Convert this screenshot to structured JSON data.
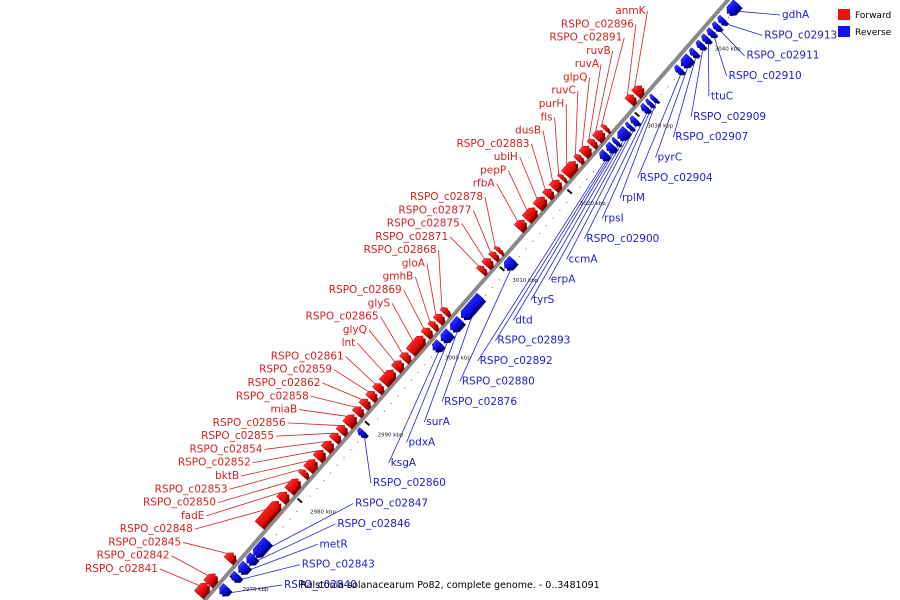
{
  "caption": "Ralstonia solanacearum Po82, complete genome. - 0..3481091",
  "legend": {
    "forward": {
      "label": "Forward",
      "color": "#ee1111"
    },
    "reverse": {
      "label": "Reverse",
      "color": "#1111ee"
    }
  },
  "colors": {
    "forward_label": "#d42020",
    "reverse_label": "#2020d0",
    "backbone": "#8a8a8a"
  },
  "ticks": [
    {
      "kbp": 2970,
      "label": "2970 kbp"
    },
    {
      "kbp": 2980,
      "label": "2980 kbp"
    },
    {
      "kbp": 2990,
      "label": "2990 kbp"
    },
    {
      "kbp": 3000,
      "label": "3000 kbp"
    },
    {
      "kbp": 3010,
      "label": "3010 kbp"
    },
    {
      "kbp": 3020,
      "label": "3020 kbp"
    },
    {
      "kbp": 3030,
      "label": "3030 kbp"
    },
    {
      "kbp": 3040,
      "label": "3040 kbp"
    }
  ],
  "genes": [
    {
      "name": "RSPO_c02840",
      "strand": "reverse",
      "start": 2968.0,
      "end": 2969.0
    },
    {
      "name": "RSPO_c02841",
      "strand": "forward",
      "start": 2966.6,
      "end": 2968.0
    },
    {
      "name": "RSPO_c02842",
      "strand": "forward",
      "start": 2968.0,
      "end": 2969.2
    },
    {
      "name": "RSPO_c02843",
      "strand": "reverse",
      "start": 2969.8,
      "end": 2970.6
    },
    {
      "name": "metR",
      "strand": "reverse",
      "start": 2970.8,
      "end": 2971.9
    },
    {
      "name": "RSPO_c02845",
      "strand": "forward",
      "start": 2971.0,
      "end": 2971.9
    },
    {
      "name": "RSPO_c02846",
      "strand": "reverse",
      "start": 2972.0,
      "end": 2973.0
    },
    {
      "name": "RSPO_c02847",
      "strand": "reverse",
      "start": 2973.0,
      "end": 2975.0
    },
    {
      "name": "RSPO_c02848",
      "strand": "forward",
      "start": 2975.6,
      "end": 2978.6
    },
    {
      "name": "fadE",
      "strand": "forward",
      "start": 2978.8,
      "end": 2979.8
    },
    {
      "name": "RSPO_c02850",
      "strand": "forward",
      "start": 2980.0,
      "end": 2981.5
    },
    {
      "name": "RSPO_c02853",
      "strand": "forward",
      "start": 2982.0,
      "end": 2982.6
    },
    {
      "name": "bktB",
      "strand": "forward",
      "start": 2982.8,
      "end": 2984.0
    },
    {
      "name": "RSPO_c02852",
      "strand": "forward",
      "start": 2984.2,
      "end": 2985.2
    },
    {
      "name": "RSPO_c02860",
      "strand": "reverse",
      "start": 2988.6,
      "end": 2989.2
    },
    {
      "name": "RSPO_c02854",
      "strand": "forward",
      "start": 2985.4,
      "end": 2986.4
    },
    {
      "name": "RSPO_c02855",
      "strand": "forward",
      "start": 2986.6,
      "end": 2987.4
    },
    {
      "name": "RSPO_c02856",
      "strand": "forward",
      "start": 2987.6,
      "end": 2988.4
    },
    {
      "name": "miaB",
      "strand": "forward",
      "start": 2988.6,
      "end": 2989.8
    },
    {
      "name": "RSPO_c02858",
      "strand": "forward",
      "start": 2990.0,
      "end": 2990.8
    },
    {
      "name": "RSPO_c02862",
      "strand": "forward",
      "start": 2991.0,
      "end": 2991.8
    },
    {
      "name": "RSPO_c02859",
      "strand": "forward",
      "start": 2992.0,
      "end": 2992.8
    },
    {
      "name": "RSPO_c02861",
      "strand": "forward",
      "start": 2993.0,
      "end": 2993.8
    },
    {
      "name": "lnt",
      "strand": "forward",
      "start": 2994.0,
      "end": 2995.6
    },
    {
      "name": "glyQ",
      "strand": "forward",
      "start": 2995.8,
      "end": 2996.8
    },
    {
      "name": "RSPO_c02865",
      "strand": "forward",
      "start": 2997.0,
      "end": 2997.8
    },
    {
      "name": "glyS",
      "strand": "forward",
      "start": 2998.0,
      "end": 3000.0
    },
    {
      "name": "RSPO_c02869",
      "strand": "forward",
      "start": 3000.2,
      "end": 3001.0
    },
    {
      "name": "gmhB",
      "strand": "forward",
      "start": 3001.2,
      "end": 3001.8
    },
    {
      "name": "gloA",
      "strand": "forward",
      "start": 3002.0,
      "end": 3002.8
    },
    {
      "name": "RSPO_c02868",
      "strand": "forward",
      "start": 3003.0,
      "end": 3003.6
    },
    {
      "name": "ksgA",
      "strand": "reverse",
      "start": 2999.6,
      "end": 3000.6
    },
    {
      "name": "pdxA",
      "strand": "reverse",
      "start": 3000.8,
      "end": 3002.0
    },
    {
      "name": "surA",
      "strand": "reverse",
      "start": 3002.2,
      "end": 3003.6
    },
    {
      "name": "RSPO_c02876",
      "strand": "reverse",
      "start": 3003.8,
      "end": 3006.6
    },
    {
      "name": "RSPO_c02871",
      "strand": "forward",
      "start": 3008.4,
      "end": 3009.0
    },
    {
      "name": "RSPO_c02875",
      "strand": "forward",
      "start": 3009.2,
      "end": 3010.0
    },
    {
      "name": "RSPO_c02877",
      "strand": "forward",
      "start": 3010.2,
      "end": 3010.8
    },
    {
      "name": "RSPO_c02878",
      "strand": "forward",
      "start": 3011.0,
      "end": 3011.4
    },
    {
      "name": "RSPO_c02880",
      "strand": "reverse",
      "start": 3010.2,
      "end": 3011.4
    },
    {
      "name": "rfbA",
      "strand": "forward",
      "start": 3014.0,
      "end": 3015.0
    },
    {
      "name": "pepP",
      "strand": "forward",
      "start": 3015.2,
      "end": 3016.6
    },
    {
      "name": "ubiH",
      "strand": "forward",
      "start": 3016.8,
      "end": 3018.0
    },
    {
      "name": "RSPO_c02883",
      "strand": "forward",
      "start": 3018.2,
      "end": 3019.0
    },
    {
      "name": "dusB",
      "strand": "forward",
      "start": 3019.2,
      "end": 3020.2
    },
    {
      "name": "fis",
      "strand": "forward",
      "start": 3020.4,
      "end": 3020.8
    },
    {
      "name": "purH",
      "strand": "forward",
      "start": 3021.0,
      "end": 3022.6
    },
    {
      "name": "ruvC",
      "strand": "forward",
      "start": 3022.8,
      "end": 3023.4
    },
    {
      "name": "glpQ",
      "strand": "forward",
      "start": 3023.6,
      "end": 3024.6
    },
    {
      "name": "ruvA",
      "strand": "forward",
      "start": 3024.8,
      "end": 3025.4
    },
    {
      "name": "ruvB",
      "strand": "forward",
      "start": 3025.6,
      "end": 3026.6
    },
    {
      "name": "RSPO_c02891",
      "strand": "forward",
      "start": 3026.8,
      "end": 3027.2
    },
    {
      "name": "RSPO_c02892",
      "strand": "reverse",
      "start": 3024.4,
      "end": 3025.2
    },
    {
      "name": "RSPO_c02893",
      "strand": "reverse",
      "start": 3025.4,
      "end": 3026.2
    },
    {
      "name": "dtd",
      "strand": "reverse",
      "start": 3026.4,
      "end": 3026.8
    },
    {
      "name": "tyrS",
      "strand": "reverse",
      "start": 3027.0,
      "end": 3028.2
    },
    {
      "name": "erpA",
      "strand": "reverse",
      "start": 3028.4,
      "end": 3028.8
    },
    {
      "name": "ccmA",
      "strand": "reverse",
      "start": 3029.0,
      "end": 3029.6
    },
    {
      "name": "RSPO_c02896",
      "strand": "forward",
      "start": 3030.4,
      "end": 3031.2
    },
    {
      "name": "anmK",
      "strand": "forward",
      "start": 3031.4,
      "end": 3032.4
    },
    {
      "name": "RSPO_c02900",
      "strand": "reverse",
      "start": 3030.6,
      "end": 3031.2
    },
    {
      "name": "rpsI",
      "strand": "reverse",
      "start": 3031.4,
      "end": 3031.8
    },
    {
      "name": "rplM",
      "strand": "reverse",
      "start": 3032.0,
      "end": 3032.4
    },
    {
      "name": "RSPO_c02904",
      "strand": "reverse",
      "start": 3035.6,
      "end": 3036.2
    },
    {
      "name": "pyrC",
      "strand": "reverse",
      "start": 3036.4,
      "end": 3037.6
    },
    {
      "name": "RSPO_c02907",
      "strand": "reverse",
      "start": 3037.8,
      "end": 3038.4
    },
    {
      "name": "RSPO_c02909",
      "strand": "reverse",
      "start": 3038.8,
      "end": 3039.4
    },
    {
      "name": "ttuC",
      "strand": "reverse",
      "start": 3039.6,
      "end": 3040.2
    },
    {
      "name": "RSPO_c02910",
      "strand": "reverse",
      "start": 3040.4,
      "end": 3041.0
    },
    {
      "name": "RSPO_c02911",
      "strand": "reverse",
      "start": 3041.2,
      "end": 3041.8
    },
    {
      "name": "RSPO_c02913",
      "strand": "reverse",
      "start": 3042.0,
      "end": 3042.6
    },
    {
      "name": "gdhA",
      "strand": "reverse",
      "start": 3043.2,
      "end": 3044.6
    }
  ]
}
